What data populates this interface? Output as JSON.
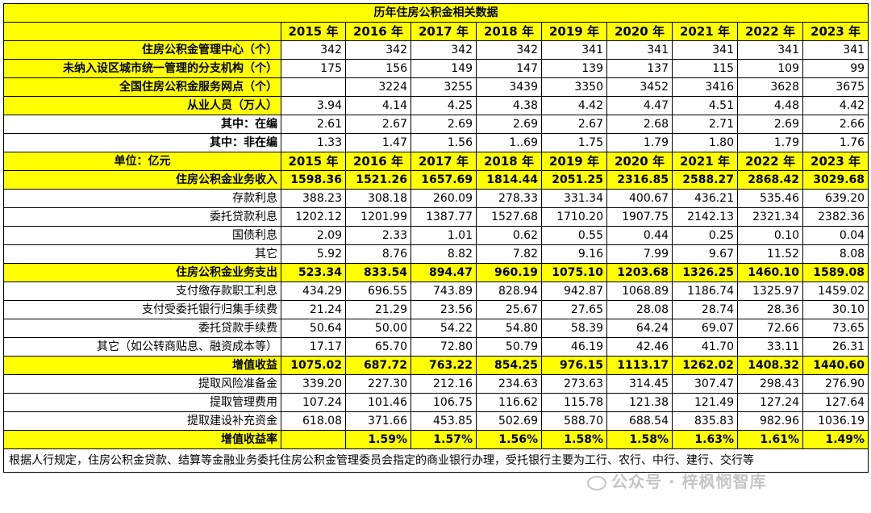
{
  "title": "历年住房公积金相关数据",
  "years": [
    "2015 年",
    "2016 年",
    "2017 年",
    "2018 年",
    "2019 年",
    "2020 年",
    "2021 年",
    "2022 年",
    "2023 年"
  ],
  "section1": {
    "header_label": "",
    "rows": [
      {
        "label": "住房公积金管理中心（个）",
        "bold": true,
        "values": [
          "342",
          "342",
          "342",
          "342",
          "341",
          "341",
          "341",
          "341",
          "341"
        ]
      },
      {
        "label": "未纳入设区城市统一管理的分支机构（个）",
        "bold": true,
        "values": [
          "175",
          "156",
          "149",
          "147",
          "139",
          "137",
          "115",
          "109",
          "99"
        ]
      },
      {
        "label": "全国住房公积金服务网点（个）",
        "bold": true,
        "values": [
          "",
          "3224",
          "3255",
          "3439",
          "3350",
          "3452",
          "3416",
          "3628",
          "3675"
        ]
      },
      {
        "label": "从业人员（万人）",
        "bold": true,
        "values": [
          "3.94",
          "4.14",
          "4.25",
          "4.38",
          "4.42",
          "4.47",
          "4.51",
          "4.48",
          "4.42"
        ]
      },
      {
        "label": "其中：在编",
        "bold": true,
        "values": [
          "2.61",
          "2.67",
          "2.69",
          "2.69",
          "2.67",
          "2.68",
          "2.71",
          "2.69",
          "2.66"
        ]
      },
      {
        "label": "其中：非在编",
        "bold": true,
        "values": [
          "1.33",
          "1.47",
          "1.56",
          "1..69",
          "1.75",
          "1.79",
          "1.80",
          "1.79",
          "1.76"
        ]
      }
    ]
  },
  "section2": {
    "header_label": "单位：亿元",
    "rows": [
      {
        "label": "住房公积金业务收入",
        "bold": true,
        "yellow": true,
        "values": [
          "1598.36",
          "1521.26",
          "1657.69",
          "1814.44",
          "2051.25",
          "2316.85",
          "2588.27",
          "2868.42",
          "3029.68"
        ]
      },
      {
        "label": "存款利息",
        "values": [
          "388.23",
          "308.18",
          "260.09",
          "278.33",
          "331.34",
          "400.67",
          "436.21",
          "535.46",
          "639.20"
        ]
      },
      {
        "label": "委托贷款利息",
        "values": [
          "1202.12",
          "1201.99",
          "1387.77",
          "1527.68",
          "1710.20",
          "1907.75",
          "2142.13",
          "2321.34",
          "2382.36"
        ]
      },
      {
        "label": "国债利息",
        "values": [
          "2.09",
          "2.33",
          "1.01",
          "0.62",
          "0.55",
          "0.44",
          "0.25",
          "0.10",
          "0.04"
        ]
      },
      {
        "label": "其它",
        "values": [
          "5.92",
          "8.76",
          "8.82",
          "7.82",
          "9.16",
          "7.99",
          "9.67",
          "11.52",
          "8.08"
        ]
      },
      {
        "label": "住房公积金业务支出",
        "bold": true,
        "yellow": true,
        "values": [
          "523.34",
          "833.54",
          "894.47",
          "960.19",
          "1075.10",
          "1203.68",
          "1326.25",
          "1460.10",
          "1589.08"
        ]
      },
      {
        "label": "支付缴存款职工利息",
        "values": [
          "434.29",
          "696.55",
          "743.89",
          "828.94",
          "942.87",
          "1068.89",
          "1186.74",
          "1325.97",
          "1459.02"
        ]
      },
      {
        "label": "支付受委托银行归集手续费",
        "values": [
          "21.24",
          "21.29",
          "23.56",
          "25.67",
          "27.65",
          "28.08",
          "28.74",
          "28.36",
          "30.10"
        ]
      },
      {
        "label": "委托贷款手续费",
        "values": [
          "50.64",
          "50.00",
          "54.22",
          "54.80",
          "58.39",
          "64.24",
          "69.07",
          "72.66",
          "73.65"
        ]
      },
      {
        "label": "其它（如公转商贴息、融资成本等）",
        "values": [
          "17.17",
          "65.70",
          "72.80",
          "50.79",
          "46.19",
          "42.46",
          "41.70",
          "33.11",
          "26.31"
        ]
      },
      {
        "label": "增值收益",
        "bold": true,
        "yellow": true,
        "values": [
          "1075.02",
          "687.72",
          "763.22",
          "854.25",
          "976.15",
          "1113.17",
          "1262.02",
          "1408.32",
          "1440.60"
        ]
      },
      {
        "label": "提取风险准备金",
        "values": [
          "339.20",
          "227.30",
          "212.16",
          "234.63",
          "273.63",
          "314.45",
          "307.47",
          "298.43",
          "276.90"
        ]
      },
      {
        "label": "提取管理费用",
        "values": [
          "107.24",
          "101.46",
          "106.75",
          "116.62",
          "115.78",
          "121.38",
          "121.49",
          "127.24",
          "127.64"
        ]
      },
      {
        "label": "提取建设补充资金",
        "values": [
          "618.08",
          "371.66",
          "453.85",
          "502.69",
          "588.70",
          "688.54",
          "835.83",
          "982.96",
          "1036.19"
        ]
      },
      {
        "label": "增值收益率",
        "bold": true,
        "yellow": true,
        "values": [
          "",
          "1.59%",
          "1.57%",
          "1.56%",
          "1.58%",
          "1.58%",
          "1.63%",
          "1.61%",
          "1.49%"
        ]
      }
    ]
  },
  "note": "根据人行规定，住房公积金贷款、结算等金融业务委托住房公积金管理委员会指定的商业银行办理，受托银行主要为工行、农行、中行、建行、交行等",
  "watermark": "公众号 · 梓枫悯智库"
}
